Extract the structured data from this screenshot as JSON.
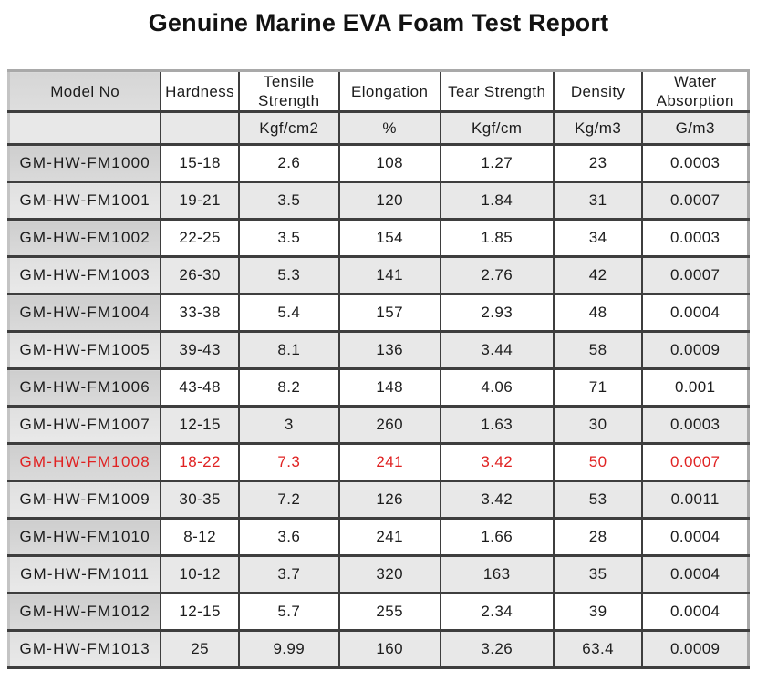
{
  "title": "Genuine Marine EVA Foam Test Report",
  "colors": {
    "highlight_text": "#e02222",
    "normal_text": "#1c1c1c",
    "model_column_shaded": "#d2d2d2",
    "alt_row_shaded": "#e8e8e8",
    "grid_line": "#3e3e3e"
  },
  "table": {
    "columns": [
      {
        "key": "model",
        "label": "Model No",
        "unit": ""
      },
      {
        "key": "hardness",
        "label": "Hardness",
        "unit": ""
      },
      {
        "key": "tensile",
        "label": "Tensile Strength",
        "unit": "Kgf/cm2"
      },
      {
        "key": "elongation",
        "label": "Elongation",
        "unit": "%"
      },
      {
        "key": "tear",
        "label": "Tear Strength",
        "unit": "Kgf/cm"
      },
      {
        "key": "density",
        "label": "Density",
        "unit": "Kg/m3"
      },
      {
        "key": "water",
        "label": "Water Absorption",
        "unit": "G/m3"
      }
    ],
    "rows": [
      {
        "model": "GM-HW-FM1000",
        "hardness": "15-18",
        "tensile": "2.6",
        "elongation": "108",
        "tear": "1.27",
        "density": "23",
        "water": "0.0003",
        "highlight": false
      },
      {
        "model": "GM-HW-FM1001",
        "hardness": "19-21",
        "tensile": "3.5",
        "elongation": "120",
        "tear": "1.84",
        "density": "31",
        "water": "0.0007",
        "highlight": false
      },
      {
        "model": "GM-HW-FM1002",
        "hardness": "22-25",
        "tensile": "3.5",
        "elongation": "154",
        "tear": "1.85",
        "density": "34",
        "water": "0.0003",
        "highlight": false
      },
      {
        "model": "GM-HW-FM1003",
        "hardness": "26-30",
        "tensile": "5.3",
        "elongation": "141",
        "tear": "2.76",
        "density": "42",
        "water": "0.0007",
        "highlight": false
      },
      {
        "model": "GM-HW-FM1004",
        "hardness": "33-38",
        "tensile": "5.4",
        "elongation": "157",
        "tear": "2.93",
        "density": "48",
        "water": "0.0004",
        "highlight": false
      },
      {
        "model": "GM-HW-FM1005",
        "hardness": "39-43",
        "tensile": "8.1",
        "elongation": "136",
        "tear": "3.44",
        "density": "58",
        "water": "0.0009",
        "highlight": false
      },
      {
        "model": "GM-HW-FM1006",
        "hardness": "43-48",
        "tensile": "8.2",
        "elongation": "148",
        "tear": "4.06",
        "density": "71",
        "water": "0.001",
        "highlight": false
      },
      {
        "model": "GM-HW-FM1007",
        "hardness": "12-15",
        "tensile": "3",
        "elongation": "260",
        "tear": "1.63",
        "density": "30",
        "water": "0.0003",
        "highlight": false
      },
      {
        "model": "GM-HW-FM1008",
        "hardness": "18-22",
        "tensile": "7.3",
        "elongation": "241",
        "tear": "3.42",
        "density": "50",
        "water": "0.0007",
        "highlight": true
      },
      {
        "model": "GM-HW-FM1009",
        "hardness": "30-35",
        "tensile": "7.2",
        "elongation": "126",
        "tear": "3.42",
        "density": "53",
        "water": "0.0011",
        "highlight": false
      },
      {
        "model": "GM-HW-FM1010",
        "hardness": "8-12",
        "tensile": "3.6",
        "elongation": "241",
        "tear": "1.66",
        "density": "28",
        "water": "0.0004",
        "highlight": false
      },
      {
        "model": "GM-HW-FM1011",
        "hardness": "10-12",
        "tensile": "3.7",
        "elongation": "320",
        "tear": "163",
        "density": "35",
        "water": "0.0004",
        "highlight": false
      },
      {
        "model": "GM-HW-FM1012",
        "hardness": "12-15",
        "tensile": "5.7",
        "elongation": "255",
        "tear": "2.34",
        "density": "39",
        "water": "0.0004",
        "highlight": false
      },
      {
        "model": "GM-HW-FM1013",
        "hardness": "25",
        "tensile": "9.99",
        "elongation": "160",
        "tear": "3.26",
        "density": "63.4",
        "water": "0.0009",
        "highlight": false
      }
    ]
  }
}
